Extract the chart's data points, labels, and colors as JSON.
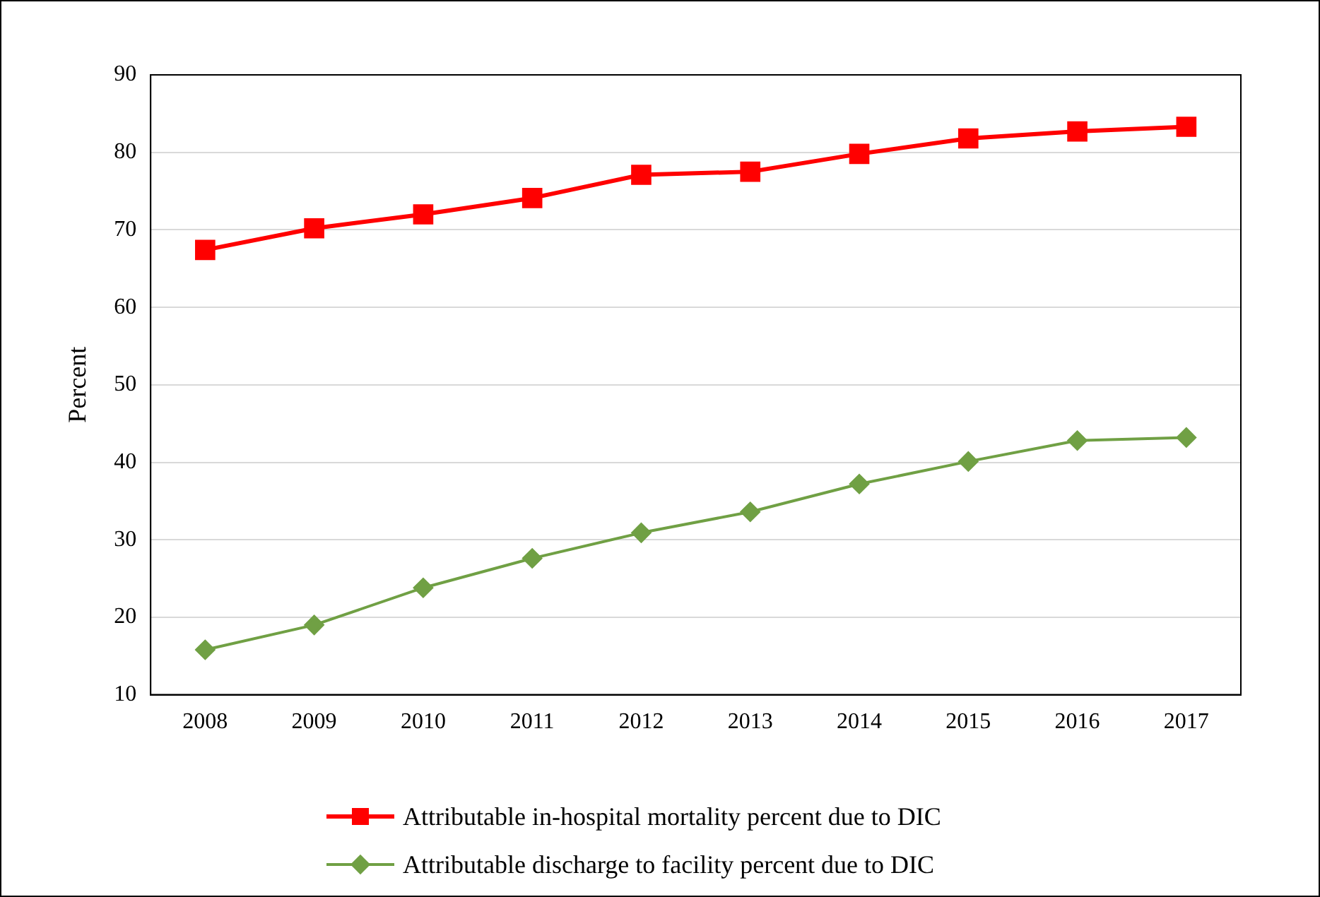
{
  "chart_data": {
    "type": "line",
    "ylabel": "Percent",
    "categories": [
      "2008",
      "2009",
      "2010",
      "2011",
      "2012",
      "2013",
      "2014",
      "2015",
      "2016",
      "2017"
    ],
    "series": [
      {
        "name": "Attributable in-hospital mortality percent due to DIC",
        "color": "#ff0000",
        "marker": "square",
        "values": [
          67.4,
          70.2,
          72.0,
          74.1,
          77.1,
          77.5,
          79.8,
          81.8,
          82.7,
          83.3
        ]
      },
      {
        "name": "Attributable discharge to facility percent due to DIC",
        "color": "#70a044",
        "marker": "diamond",
        "values": [
          15.8,
          19.0,
          23.8,
          27.6,
          30.9,
          33.6,
          37.2,
          40.1,
          42.8,
          43.2
        ]
      }
    ],
    "ylim": [
      10,
      90
    ],
    "yticks": [
      10,
      20,
      30,
      40,
      50,
      60,
      70,
      80,
      90
    ],
    "grid": "y",
    "legend": "bottom",
    "line_style": "solid"
  }
}
